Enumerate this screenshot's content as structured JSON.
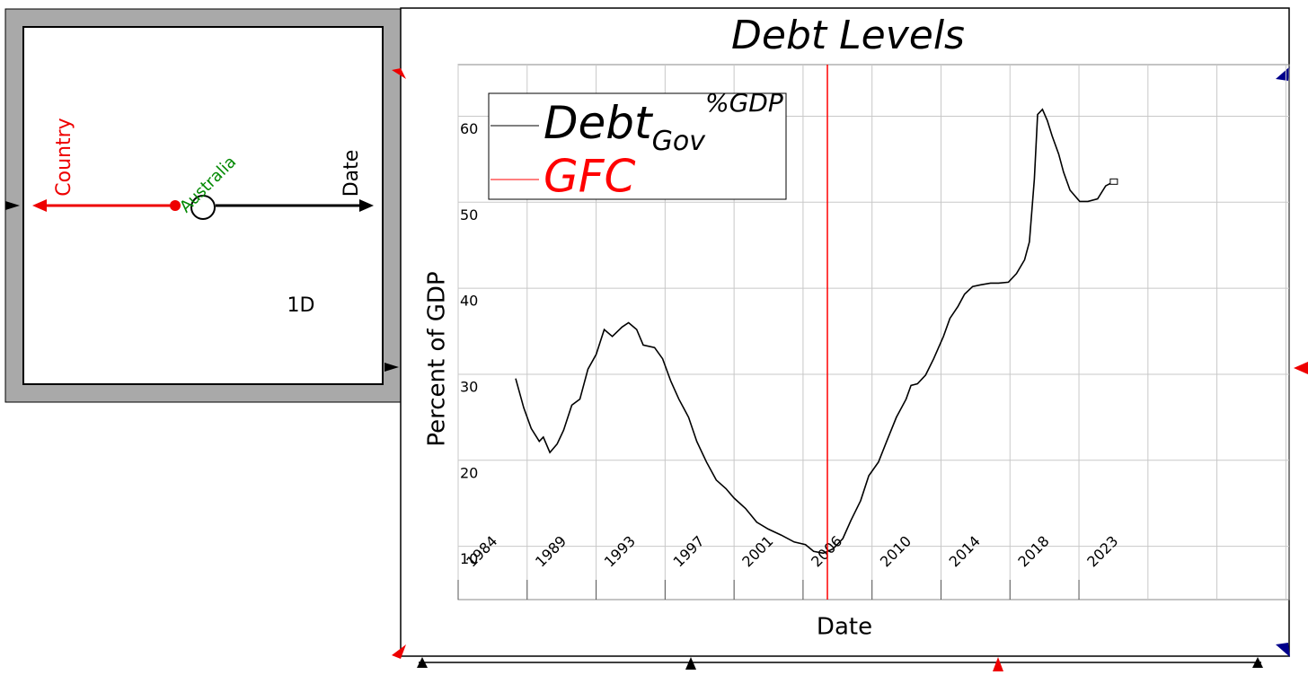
{
  "panel": {
    "axes": [
      "Country",
      "Date"
    ],
    "slice": "Australia",
    "rank": "1D"
  },
  "chart_data": {
    "type": "line",
    "title": "Debt Levels",
    "x_label": "Date",
    "y_label": "Percent of GDP",
    "series": [
      {
        "name": "Debt",
        "name_sub": "Gov",
        "name_sup": "%GDP",
        "color": "#000000",
        "x": [
          1988.34,
          1988.84,
          1989.3,
          1989.8,
          1990.05,
          1990.45,
          1990.9,
          1991.3,
          1991.8,
          1992.3,
          1992.8,
          1993.3,
          1993.8,
          1994.3,
          1994.9,
          1995.3,
          1995.8,
          1996.2,
          1996.9,
          1997.4,
          1997.9,
          1998.4,
          1999.0,
          1999.5,
          2000.1,
          2000.7,
          2001.3,
          2001.8,
          2002.5,
          2003.2,
          2003.9,
          2004.7,
          2005.5,
          2006.2,
          2006.7,
          2007.3,
          2007.9,
          2008.5,
          2009.0,
          2009.6,
          2010.1,
          2010.7,
          2011.2,
          2011.8,
          2012.4,
          2012.7,
          2013.1,
          2013.6,
          2014.1,
          2014.7,
          2015.1,
          2015.6,
          2016.0,
          2016.5,
          2017.0,
          2017.6,
          2018.1,
          2018.7,
          2019.2,
          2019.7,
          2020.0,
          2020.3,
          2020.5,
          2020.8,
          2021.1,
          2021.4,
          2021.8,
          2022.1,
          2022.5,
          2023.1,
          2023.6,
          2024.2,
          2024.7,
          2025.2
        ],
        "values": [
          29.5,
          26.1,
          23.7,
          22.2,
          22.7,
          20.9,
          21.9,
          23.5,
          26.4,
          27.1,
          30.6,
          32.3,
          35.2,
          34.4,
          35.5,
          36.0,
          35.2,
          33.4,
          33.1,
          31.8,
          29.2,
          27.1,
          25.0,
          22.2,
          19.8,
          17.7,
          16.7,
          15.6,
          14.4,
          12.8,
          12.0,
          11.3,
          10.5,
          10.2,
          9.4,
          9.2,
          9.7,
          10.9,
          13.0,
          15.3,
          18.2,
          19.8,
          22.2,
          25.0,
          27.1,
          28.7,
          28.9,
          29.9,
          31.8,
          34.4,
          36.5,
          37.9,
          39.3,
          40.2,
          40.4,
          40.6,
          40.6,
          40.7,
          41.7,
          43.3,
          45.4,
          52.7,
          60.2,
          60.8,
          59.5,
          57.7,
          55.6,
          53.5,
          51.4,
          50.1,
          50.1,
          50.4,
          51.9,
          52.4
        ]
      }
    ],
    "vlines": [
      {
        "name": "GFC",
        "color": "#ff0000",
        "x": 2007.55
      }
    ],
    "xlim": [
      1984.8,
      2036.0
    ],
    "xticks": [
      {
        "value": 1984.8,
        "label": "1984"
      },
      {
        "value": 1989.05,
        "label": "1989"
      },
      {
        "value": 1993.3,
        "label": "1993"
      },
      {
        "value": 1997.55,
        "label": "1997"
      },
      {
        "value": 2001.8,
        "label": "2001"
      },
      {
        "value": 2006.05,
        "label": "2006"
      },
      {
        "value": 2010.3,
        "label": "2010"
      },
      {
        "value": 2014.55,
        "label": "2014"
      },
      {
        "value": 2018.8,
        "label": "2018"
      },
      {
        "value": 2023.05,
        "label": "2023"
      }
    ],
    "ylim": [
      3.8,
      66.0
    ],
    "yticks": [
      10,
      20,
      30,
      40,
      50,
      60
    ],
    "grid": true
  }
}
